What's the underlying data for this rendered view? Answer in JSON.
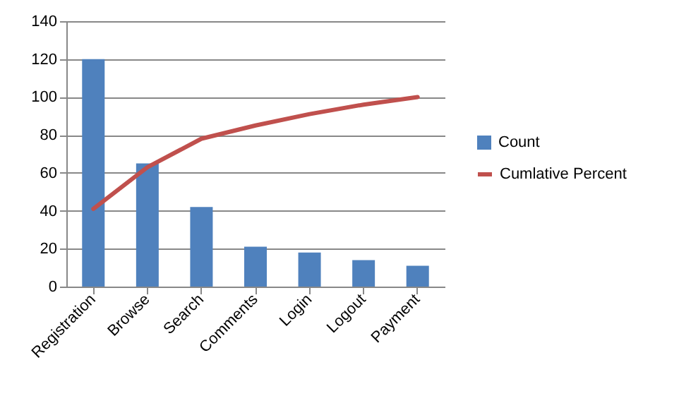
{
  "chart_data": {
    "type": "bar",
    "categories": [
      "Registration",
      "Browse",
      "Search",
      "Comments",
      "Login",
      "Logout",
      "Payment"
    ],
    "series": [
      {
        "name": "Count",
        "type": "bar",
        "color": "#4f81bd",
        "values": [
          120,
          65,
          42,
          21,
          18,
          14,
          11
        ]
      },
      {
        "name": "Cumlative Percent",
        "type": "line",
        "color": "#c0504d",
        "values": [
          41,
          63,
          78,
          85,
          91,
          96,
          100
        ]
      }
    ],
    "ylim": [
      0,
      140
    ],
    "yticks": [
      0,
      20,
      40,
      60,
      80,
      100,
      120,
      140
    ],
    "grid": "y",
    "legend": "right"
  }
}
